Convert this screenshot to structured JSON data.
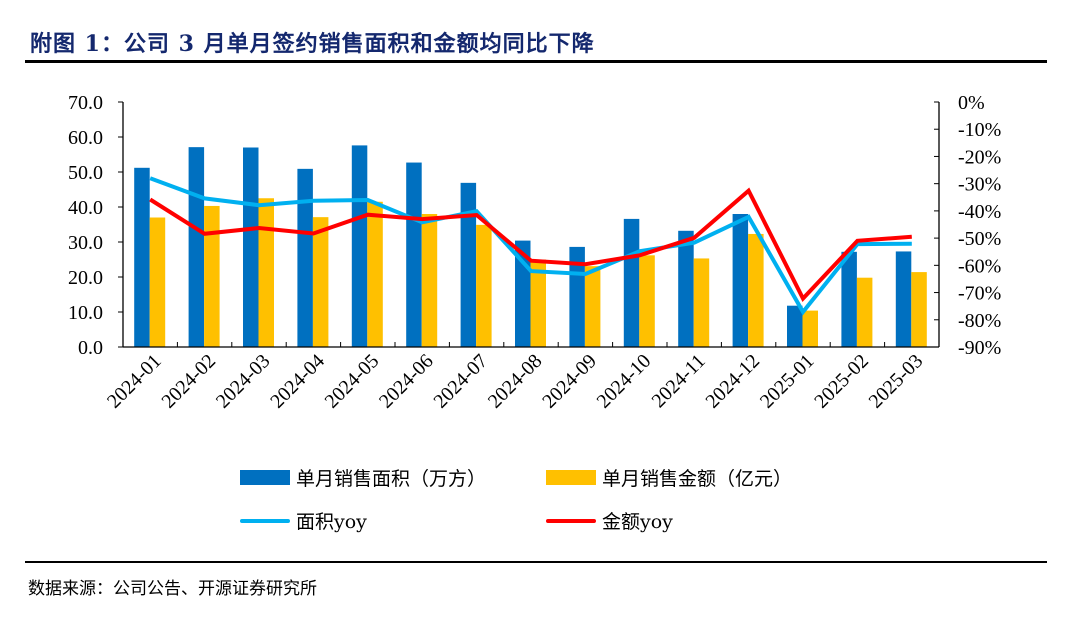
{
  "title": "附图 1：公司 3 月单月签约销售面积和金额均同比下降",
  "source": "数据来源：公司公告、开源证券研究所",
  "colors": {
    "area_bar": "#0070C0",
    "amount_bar": "#FFC000",
    "area_yoy_line": "#00B0F0",
    "amount_yoy_line": "#FF0000",
    "title": "#14286E"
  },
  "chart_data": {
    "type": "bar",
    "title": "",
    "categories": [
      "2024-01",
      "2024-02",
      "2024-03",
      "2024-04",
      "2024-05",
      "2024-06",
      "2024-07",
      "2024-08",
      "2024-09",
      "2024-10",
      "2024-11",
      "2024-12",
      "2025-01",
      "2025-02",
      "2025-03"
    ],
    "series": [
      {
        "name": "单月销售面积（万方）",
        "type": "bar",
        "axis": "left",
        "values": [
          51.2,
          57.1,
          57.0,
          50.9,
          57.6,
          52.7,
          46.9,
          30.4,
          28.6,
          36.6,
          33.2,
          38.0,
          11.8,
          27.2,
          27.3
        ]
      },
      {
        "name": "单月销售金额（亿元）",
        "type": "bar",
        "axis": "left",
        "values": [
          37.0,
          40.3,
          42.5,
          37.1,
          41.5,
          38.0,
          34.9,
          25.0,
          23.1,
          26.2,
          25.3,
          32.3,
          10.4,
          19.8,
          21.4
        ]
      },
      {
        "name": "面积yoy",
        "type": "line",
        "axis": "right",
        "values": [
          -28.0,
          -35.4,
          -37.9,
          -36.3,
          -36.0,
          -44.2,
          -40.1,
          -62.1,
          -63.2,
          -54.8,
          -51.7,
          -42.2,
          -77.1,
          -52.2,
          -52.1
        ]
      },
      {
        "name": "金额yoy",
        "type": "line",
        "axis": "right",
        "values": [
          -35.8,
          -48.4,
          -46.3,
          -48.3,
          -41.4,
          -43.0,
          -41.5,
          -58.3,
          -59.6,
          -56.3,
          -49.9,
          -32.6,
          -72.2,
          -51.0,
          -49.5
        ]
      }
    ],
    "y_left": {
      "range": [
        0,
        70
      ],
      "ticks": [
        "0.0",
        "10.0",
        "20.0",
        "30.0",
        "40.0",
        "50.0",
        "60.0",
        "70.0"
      ],
      "tick_values": [
        0,
        10,
        20,
        30,
        40,
        50,
        60,
        70
      ]
    },
    "y_right": {
      "range": [
        -90,
        0
      ],
      "unit": "%",
      "ticks": [
        "0%",
        "-10%",
        "-20%",
        "-30%",
        "-40%",
        "-50%",
        "-60%",
        "-70%",
        "-80%",
        "-90%"
      ],
      "tick_values": [
        0,
        -10,
        -20,
        -30,
        -40,
        -50,
        -60,
        -70,
        -80,
        -90
      ]
    },
    "xlabel": "",
    "ylabel": "",
    "grid": false,
    "legend": {
      "position": "bottom",
      "entries": [
        "单月销售面积（万方）",
        "单月销售金额（亿元）",
        "面积yoy",
        "金额yoy"
      ]
    }
  }
}
